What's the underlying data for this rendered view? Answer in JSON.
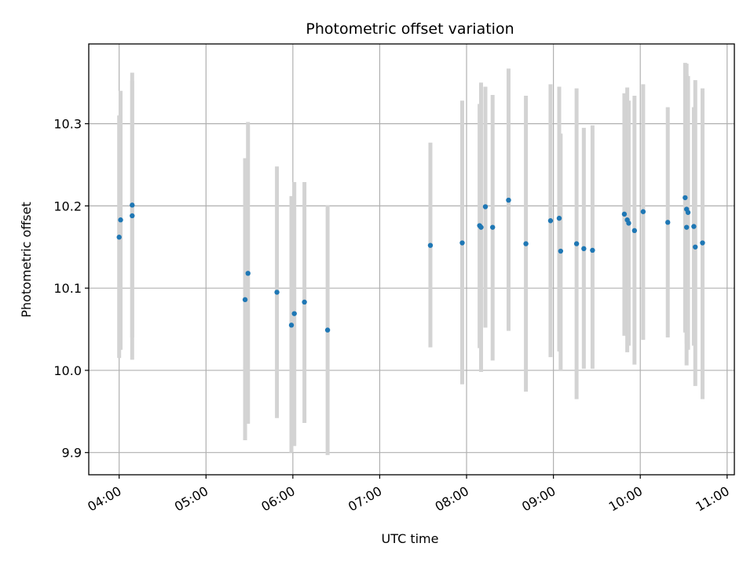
{
  "chart_data": {
    "type": "scatter",
    "title": "Photometric offset variation",
    "xlabel": "UTC time",
    "ylabel": "Photometric offset",
    "x_tick_labels": [
      "04:00",
      "05:00",
      "06:00",
      "07:00",
      "08:00",
      "09:00",
      "10:00",
      "11:00"
    ],
    "y_tick_labels": [
      "9.9",
      "10.0",
      "10.1",
      "10.2",
      "10.3"
    ],
    "xlim": [
      "03:39",
      "11:05"
    ],
    "ylim": [
      9.873,
      10.397
    ],
    "y_ticks": [
      9.9,
      10.0,
      10.1,
      10.2,
      10.3
    ],
    "grid": true,
    "point_color": "#1f77b4",
    "errorbar_color": "#d3d3d3",
    "points": [
      {
        "x": "04:00",
        "y": 10.162,
        "ylow": 10.015,
        "yhigh": 10.31
      },
      {
        "x": "04:01",
        "y": 10.183,
        "ylow": 10.025,
        "yhigh": 10.34
      },
      {
        "x": "04:09",
        "y": 10.201,
        "ylow": 10.04,
        "yhigh": 10.362
      },
      {
        "x": "04:09",
        "y": 10.188,
        "ylow": 10.013,
        "yhigh": 10.352
      },
      {
        "x": "05:27",
        "y": 10.086,
        "ylow": 9.915,
        "yhigh": 10.258
      },
      {
        "x": "05:29",
        "y": 10.118,
        "ylow": 9.935,
        "yhigh": 10.302
      },
      {
        "x": "05:49",
        "y": 10.095,
        "ylow": 9.942,
        "yhigh": 10.248
      },
      {
        "x": "05:59",
        "y": 10.055,
        "ylow": 9.9,
        "yhigh": 10.212
      },
      {
        "x": "06:01",
        "y": 10.069,
        "ylow": 9.908,
        "yhigh": 10.229
      },
      {
        "x": "06:08",
        "y": 10.083,
        "ylow": 9.936,
        "yhigh": 10.229
      },
      {
        "x": "06:24",
        "y": 10.049,
        "ylow": 9.897,
        "yhigh": 10.201
      },
      {
        "x": "07:35",
        "y": 10.152,
        "ylow": 10.028,
        "yhigh": 10.277
      },
      {
        "x": "07:57",
        "y": 10.155,
        "ylow": 9.983,
        "yhigh": 10.328
      },
      {
        "x": "08:09",
        "y": 10.176,
        "ylow": 10.027,
        "yhigh": 10.324
      },
      {
        "x": "08:10",
        "y": 10.174,
        "ylow": 9.998,
        "yhigh": 10.35
      },
      {
        "x": "08:13",
        "y": 10.199,
        "ylow": 10.052,
        "yhigh": 10.345
      },
      {
        "x": "08:18",
        "y": 10.174,
        "ylow": 10.012,
        "yhigh": 10.335
      },
      {
        "x": "08:29",
        "y": 10.207,
        "ylow": 10.048,
        "yhigh": 10.367
      },
      {
        "x": "08:41",
        "y": 10.154,
        "ylow": 9.974,
        "yhigh": 10.334
      },
      {
        "x": "08:58",
        "y": 10.182,
        "ylow": 10.016,
        "yhigh": 10.348
      },
      {
        "x": "09:04",
        "y": 10.185,
        "ylow": 10.023,
        "yhigh": 10.345
      },
      {
        "x": "09:05",
        "y": 10.145,
        "ylow": 10.0,
        "yhigh": 10.288
      },
      {
        "x": "09:16",
        "y": 10.154,
        "ylow": 9.965,
        "yhigh": 10.343
      },
      {
        "x": "09:21",
        "y": 10.148,
        "ylow": 10.002,
        "yhigh": 10.295
      },
      {
        "x": "09:27",
        "y": 10.146,
        "ylow": 10.002,
        "yhigh": 10.298
      },
      {
        "x": "09:49",
        "y": 10.19,
        "ylow": 10.042,
        "yhigh": 10.337
      },
      {
        "x": "09:51",
        "y": 10.183,
        "ylow": 10.022,
        "yhigh": 10.344
      },
      {
        "x": "09:52",
        "y": 10.179,
        "ylow": 10.03,
        "yhigh": 10.328
      },
      {
        "x": "09:56",
        "y": 10.17,
        "ylow": 10.007,
        "yhigh": 10.334
      },
      {
        "x": "10:02",
        "y": 10.193,
        "ylow": 10.037,
        "yhigh": 10.348
      },
      {
        "x": "10:19",
        "y": 10.18,
        "ylow": 10.04,
        "yhigh": 10.32
      },
      {
        "x": "10:31",
        "y": 10.21,
        "ylow": 10.046,
        "yhigh": 10.374
      },
      {
        "x": "10:32",
        "y": 10.174,
        "ylow": 10.006,
        "yhigh": 10.373
      },
      {
        "x": "10:32",
        "y": 10.196,
        "ylow": 10.032,
        "yhigh": 10.36
      },
      {
        "x": "10:33",
        "y": 10.192,
        "ylow": 10.025,
        "yhigh": 10.358
      },
      {
        "x": "10:37",
        "y": 10.175,
        "ylow": 10.03,
        "yhigh": 10.32
      },
      {
        "x": "10:38",
        "y": 10.15,
        "ylow": 9.981,
        "yhigh": 10.353
      },
      {
        "x": "10:43",
        "y": 10.155,
        "ylow": 9.965,
        "yhigh": 10.343
      }
    ]
  }
}
